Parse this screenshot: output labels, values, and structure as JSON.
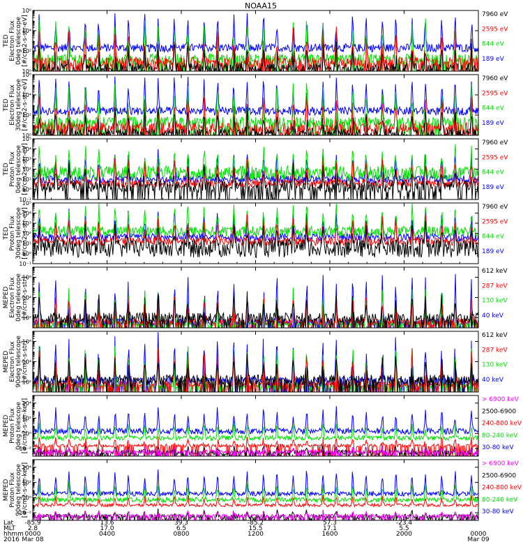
{
  "title": "NOAA15",
  "colors": {
    "black": "#000000",
    "red": "#ff0000",
    "green": "#00e000",
    "blue": "#0000ff",
    "magenta": "#ff00ff"
  },
  "chart_data": {
    "type": "line",
    "time_axis": {
      "rows": [
        {
          "label": "Lat",
          "values": [
            "-85.9",
            "13.6",
            "39.3",
            "-85.2",
            "57.3",
            "-23.4"
          ]
        },
        {
          "label": "MLT",
          "values": [
            "2.8",
            "17.0",
            "6.5",
            "15.5",
            "17.1",
            "5.5"
          ]
        },
        {
          "label": "hhmm",
          "values": [
            "0000",
            "0400",
            "0800",
            "1200",
            "1600",
            "2000",
            "0000"
          ]
        },
        {
          "label": "2016",
          "values": [
            "Mar 08",
            "",
            "",
            "",
            "",
            "",
            "Mar 09"
          ]
        }
      ],
      "tick_hours": [
        0,
        4,
        8,
        12,
        16,
        20,
        24
      ],
      "lat_mlt_hours": [
        0,
        4,
        8,
        12,
        16,
        20
      ]
    },
    "panels": [
      {
        "ylabel": [
          "TED",
          "Electron Flux",
          "0deg telescope",
          "[#/cm2-s-str-eV]"
        ],
        "ylog": [
          0,
          6
        ],
        "ticks": [
          {
            "v": 0,
            "t": "10⁰"
          },
          {
            "v": 2,
            "t": "10²"
          },
          {
            "v": 4,
            "t": "10⁴"
          },
          {
            "v": 6,
            "t": "10⁶"
          }
        ],
        "series": [
          {
            "name": "7960 eV",
            "color": "#000000",
            "base": 0.3,
            "noise": 0.5,
            "peak": 2.2
          },
          {
            "name": "2595 eV",
            "color": "#ff0000",
            "base": 0.9,
            "noise": 0.5,
            "peak": 3.0
          },
          {
            "name": "844 eV",
            "color": "#00e000",
            "base": 1.2,
            "noise": 0.5,
            "peak": 3.6
          },
          {
            "name": "189 eV",
            "color": "#0000ff",
            "base": 2.3,
            "noise": 0.4,
            "peak": 3.2
          }
        ]
      },
      {
        "ylabel": [
          "TED",
          "Electron Flux",
          "30deg telescope",
          "[#/cm2-s-str-eV]"
        ],
        "ylog": [
          0,
          6
        ],
        "ticks": [
          {
            "v": 0,
            "t": "10⁰"
          },
          {
            "v": 2,
            "t": "10²"
          },
          {
            "v": 4,
            "t": "10⁴"
          },
          {
            "v": 6,
            "t": "10⁶"
          }
        ],
        "series": [
          {
            "name": "7960 eV",
            "color": "#000000",
            "base": 0.2,
            "noise": 0.5,
            "peak": 2.4
          },
          {
            "name": "2595 eV",
            "color": "#ff0000",
            "base": 0.8,
            "noise": 0.5,
            "peak": 3.1
          },
          {
            "name": "844 eV",
            "color": "#00e000",
            "base": 1.3,
            "noise": 0.5,
            "peak": 3.6
          },
          {
            "name": "189 eV",
            "color": "#0000ff",
            "base": 2.4,
            "noise": 0.4,
            "peak": 3.2
          }
        ]
      },
      {
        "ylabel": [
          "TED",
          "Proton Flux",
          "0deg telescope",
          "[#/cm2-s-str-eV]"
        ],
        "ylog": [
          -1,
          5
        ],
        "ticks": [
          {
            "v": -1,
            "t": "10⁻¹"
          },
          {
            "v": 0,
            "t": "10⁰"
          },
          {
            "v": 1,
            "t": "10¹"
          },
          {
            "v": 2,
            "t": "10²"
          },
          {
            "v": 3,
            "t": "10³"
          },
          {
            "v": 4,
            "t": "10⁴"
          },
          {
            "v": 5,
            "t": "10⁵"
          }
        ],
        "series": [
          {
            "name": "7960 eV",
            "color": "#000000",
            "base": 0.3,
            "noise": 0.6,
            "peak": 1.8
          },
          {
            "name": "2595 eV",
            "color": "#ff0000",
            "base": 0.6,
            "noise": 0.4,
            "peak": 2.2
          },
          {
            "name": "844 eV",
            "color": "#00e000",
            "base": 1.6,
            "noise": 0.7,
            "peak": 2.4
          },
          {
            "name": "189 eV",
            "color": "#0000ff",
            "base": 1.0,
            "noise": 0.4,
            "peak": 2.6
          }
        ]
      },
      {
        "ylabel": [
          "TED",
          "Proton Flux",
          "30deg telescope",
          "[#/cm2-s-str-eV]"
        ],
        "ylog": [
          -1,
          5
        ],
        "ticks": [
          {
            "v": -1,
            "t": "10⁻¹"
          },
          {
            "v": 0,
            "t": "10⁰"
          },
          {
            "v": 1,
            "t": "10¹"
          },
          {
            "v": 2,
            "t": "10²"
          },
          {
            "v": 3,
            "t": "10³"
          },
          {
            "v": 4,
            "t": "10⁴"
          },
          {
            "v": 5,
            "t": "10⁵"
          }
        ],
        "series": [
          {
            "name": "7960 eV",
            "color": "#000000",
            "base": 0.5,
            "noise": 0.9,
            "peak": 2.0
          },
          {
            "name": "2595 eV",
            "color": "#ff0000",
            "base": 1.2,
            "noise": 0.4,
            "peak": 2.2
          },
          {
            "name": "844 eV",
            "color": "#00e000",
            "base": 2.2,
            "noise": 0.5,
            "peak": 2.4
          },
          {
            "name": "189 eV",
            "color": "#0000ff",
            "base": 1.6,
            "noise": 0.4,
            "peak": 2.6
          }
        ]
      },
      {
        "ylabel": [
          "MEPED",
          "Electron Flux",
          "0deg telescope",
          "[#/cm2-s-str]"
        ],
        "ylog": [
          1,
          7
        ],
        "ticks": [
          {
            "v": 2,
            "t": "10²"
          },
          {
            "v": 4,
            "t": "10⁴"
          },
          {
            "v": 6,
            "t": "10⁶"
          }
        ],
        "series": [
          {
            "name": "612 keV",
            "color": "#000000",
            "base": 2.0,
            "noise": 0.5,
            "peak": 2.2
          },
          {
            "name": "287 keV",
            "color": "#ff0000",
            "base": 1.6,
            "noise": 0.3,
            "peak": 2.8
          },
          {
            "name": "130 keV",
            "color": "#00e000",
            "base": 1.4,
            "noise": 0.2,
            "peak": 3.5
          },
          {
            "name": "40 keV",
            "color": "#0000ff",
            "base": 1.6,
            "noise": 0.3,
            "peak": 4.5
          }
        ]
      },
      {
        "ylabel": [
          "MEPED",
          "Electron Flux",
          "90deg telescope",
          "[#/cm2-s-str]"
        ],
        "ylog": [
          1,
          7
        ],
        "ticks": [
          {
            "v": 2,
            "t": "10²"
          },
          {
            "v": 4,
            "t": "10⁴"
          },
          {
            "v": 6,
            "t": "10⁶"
          }
        ],
        "series": [
          {
            "name": "612 keV",
            "color": "#000000",
            "base": 2.2,
            "noise": 0.5,
            "peak": 2.3
          },
          {
            "name": "287 keV",
            "color": "#ff0000",
            "base": 1.8,
            "noise": 0.3,
            "peak": 3.3
          },
          {
            "name": "130 keV",
            "color": "#00e000",
            "base": 1.6,
            "noise": 0.2,
            "peak": 4.0
          },
          {
            "name": "40 keV",
            "color": "#0000ff",
            "base": 2.2,
            "noise": 0.3,
            "peak": 4.3
          }
        ]
      },
      {
        "ylabel": [
          "MEPED",
          "Proton Flux",
          "0deg telescope",
          "[#/cm2-s-str-keV]"
        ],
        "ylog": [
          -3,
          5
        ],
        "ticks": [
          {
            "v": -2,
            "t": "10⁻²"
          },
          {
            "v": 0,
            "t": "10⁰"
          },
          {
            "v": 2,
            "t": "10²"
          },
          {
            "v": 4,
            "t": "10⁴"
          }
        ],
        "series": [
          {
            "name": "> 6900 keV",
            "color": "#ff00ff",
            "base": -2.4,
            "noise": 0.2,
            "peak": 0.6
          },
          {
            "name": "2500-6900",
            "color": "#000000",
            "base": -2.5,
            "noise": 0.3,
            "peak": 0.8
          },
          {
            "name": "240-800 keV",
            "color": "#ff0000",
            "base": -1.6,
            "noise": 0.2,
            "peak": 1.0
          },
          {
            "name": "80-240 keV",
            "color": "#00e000",
            "base": -0.6,
            "noise": 0.3,
            "peak": 1.8
          },
          {
            "name": "30-80 keV",
            "color": "#0000ff",
            "base": 0.3,
            "noise": 0.4,
            "peak": 3.0
          }
        ]
      },
      {
        "ylabel": [
          "MEPED",
          "Proton Flux",
          "90deg telescope",
          "[#/cm2-s-str-keV]"
        ],
        "ylog": [
          -3,
          5
        ],
        "ticks": [
          {
            "v": -2,
            "t": "10⁻²"
          },
          {
            "v": 0,
            "t": "10⁰"
          },
          {
            "v": 2,
            "t": "10²"
          },
          {
            "v": 4,
            "t": "10⁴"
          }
        ],
        "series": [
          {
            "name": "> 6900 keV",
            "color": "#ff00ff",
            "base": -2.4,
            "noise": 0.2,
            "peak": 0.6
          },
          {
            "name": "2500-6900",
            "color": "#000000",
            "base": -2.5,
            "noise": 0.3,
            "peak": 0.8
          },
          {
            "name": "240-800 keV",
            "color": "#ff0000",
            "base": -1.0,
            "noise": 0.2,
            "peak": 1.2
          },
          {
            "name": "80-240 keV",
            "color": "#00e000",
            "base": -0.3,
            "noise": 0.3,
            "peak": 2.0
          },
          {
            "name": "30-80 keV",
            "color": "#0000ff",
            "base": 0.5,
            "noise": 0.3,
            "peak": 3.0
          }
        ]
      }
    ]
  }
}
